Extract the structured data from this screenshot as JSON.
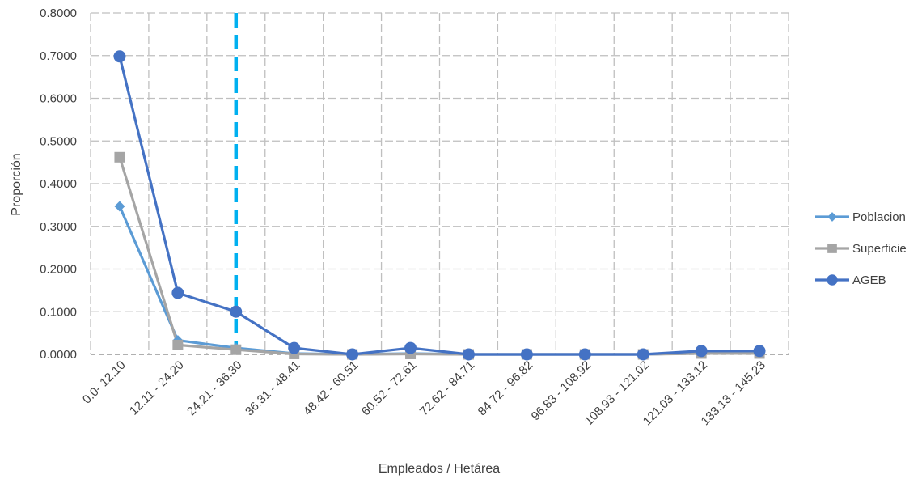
{
  "chart_data": {
    "type": "line",
    "title": "",
    "xlabel": "Empleados / Hetárea",
    "ylabel": "Proporción",
    "ylim": [
      0,
      0.8
    ],
    "y_ticks": [
      "0.0000",
      "0.1000",
      "0.2000",
      "0.3000",
      "0.4000",
      "0.5000",
      "0.6000",
      "0.7000",
      "0.8000"
    ],
    "categories": [
      "0.0- 12.10",
      "12.11 - 24.20",
      "24.21 - 36.30",
      "36.31 - 48.41",
      "48.42 - 60.51",
      "60.52 - 72.61",
      "72.62 - 84.71",
      "84.72 - 96.82",
      "96.83 - 108.92",
      "108.93 - 121.02",
      "121.03 - 133.12",
      "133.13 - 145.23"
    ],
    "grid": true,
    "legend_position": "right",
    "reference_line": {
      "category_index": 2,
      "color": "#00B0F0",
      "style": "dashed"
    },
    "series": [
      {
        "name": "Poblacion",
        "marker": "diamond",
        "color": "#5B9BD5",
        "values": [
          0.347,
          0.033,
          0.015,
          0.002,
          0.0,
          0.002,
          0.0,
          0.0,
          0.0,
          0.0,
          0.003,
          0.003
        ]
      },
      {
        "name": "Superficie",
        "marker": "square",
        "color": "#A5A5A5",
        "values": [
          0.462,
          0.022,
          0.011,
          0.001,
          0.0,
          0.001,
          0.0,
          0.0,
          0.0,
          0.0,
          0.002,
          0.002
        ]
      },
      {
        "name": "AGEB",
        "marker": "circle",
        "color": "#4472C4",
        "values": [
          0.698,
          0.144,
          0.1,
          0.015,
          0.0,
          0.015,
          0.0,
          0.0,
          0.0,
          0.0,
          0.008,
          0.008
        ]
      }
    ]
  }
}
